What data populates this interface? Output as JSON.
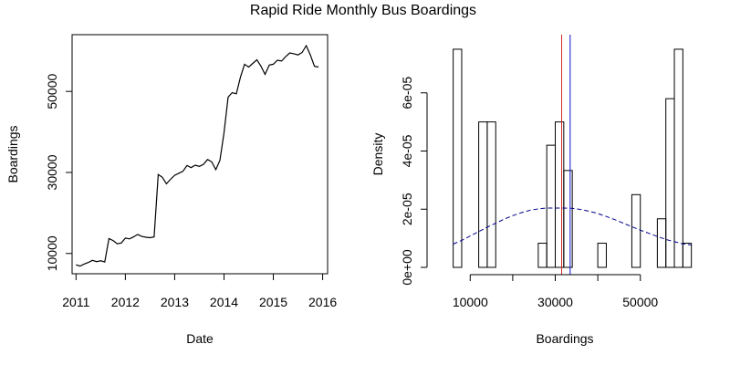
{
  "title": "Rapid Ride Monthly Bus Boardings",
  "chart_data": [
    {
      "type": "line",
      "xlabel": "Date",
      "ylabel": "Boardings",
      "xlim": [
        2010.92,
        2016.1
      ],
      "ylim": [
        5000,
        64000
      ],
      "xticks": [
        2011,
        2012,
        2013,
        2014,
        2015,
        2016
      ],
      "yticks": [
        10000,
        30000,
        50000
      ],
      "grid": false,
      "series": [
        {
          "x": [
            2011.0,
            2011.083,
            2011.167,
            2011.25,
            2011.333,
            2011.417,
            2011.5,
            2011.583,
            2011.667,
            2011.75,
            2011.833,
            2011.917,
            2012.0,
            2012.083,
            2012.167,
            2012.25,
            2012.333,
            2012.417,
            2012.5,
            2012.583,
            2012.667,
            2012.75,
            2012.833,
            2012.917,
            2013.0,
            2013.083,
            2013.167,
            2013.25,
            2013.333,
            2013.417,
            2013.5,
            2013.583,
            2013.667,
            2013.75,
            2013.833,
            2013.917,
            2014.0,
            2014.083,
            2014.167,
            2014.25,
            2014.333,
            2014.417,
            2014.5,
            2014.583,
            2014.667,
            2014.75,
            2014.833,
            2014.917,
            2015.0,
            2015.083,
            2015.167,
            2015.25,
            2015.333,
            2015.417,
            2015.5,
            2015.583,
            2015.667,
            2015.75,
            2015.833,
            2015.917
          ],
          "values": [
            7200,
            6900,
            7400,
            7800,
            8300,
            8000,
            8200,
            7900,
            13700,
            13200,
            12400,
            12600,
            13800,
            13600,
            14100,
            14700,
            14200,
            14000,
            13900,
            14100,
            29500,
            28800,
            27200,
            28300,
            29300,
            29800,
            30300,
            31700,
            31200,
            31800,
            31500,
            32000,
            33200,
            32600,
            30700,
            33000,
            39800,
            48600,
            49700,
            49400,
            53500,
            56700,
            56000,
            56900,
            57800,
            56200,
            54200,
            56500,
            56700,
            57700,
            57500,
            58600,
            59500,
            59300,
            59000,
            59600,
            61300,
            59000,
            56200,
            56000
          ]
        }
      ]
    },
    {
      "type": "histogram",
      "xlabel": "Boardings",
      "ylabel": "Density",
      "xlim": [
        2000,
        62500
      ],
      "ylim": [
        0,
        8e-05
      ],
      "xticks": [
        10000,
        30000,
        50000
      ],
      "yticks": [
        0,
        2e-05,
        4e-05,
        6e-05
      ],
      "ytick_labels": [
        "0e+00",
        "2e-05",
        "4e-05",
        "6e-05"
      ],
      "grid": false,
      "bins": [
        6000,
        8000,
        10000,
        12000,
        14000,
        16000,
        18000,
        20000,
        22000,
        24000,
        26000,
        28000,
        30000,
        32000,
        34000,
        36000,
        38000,
        40000,
        42000,
        44000,
        46000,
        48000,
        50000,
        52000,
        54000,
        56000,
        58000,
        60000,
        62000
      ],
      "density": [
        7.5e-05,
        0,
        0,
        5e-05,
        5e-05,
        0,
        0,
        0,
        0,
        0,
        8.3e-06,
        4.2e-05,
        5e-05,
        3.33e-05,
        0,
        0,
        0,
        8.3e-06,
        0,
        0,
        0,
        2.5e-05,
        0,
        0,
        1.67e-05,
        5.8e-05,
        7.5e-05,
        8.3e-06
      ],
      "density_curve": {
        "style": "dashed",
        "color": "#00008b",
        "x": [
          6000,
          8000,
          10000,
          12000,
          14000,
          16000,
          18000,
          20000,
          22000,
          24000,
          26000,
          28000,
          30000,
          32000,
          34000,
          36000,
          38000,
          40000,
          42000,
          44000,
          46000,
          48000,
          50000,
          52000,
          54000,
          56000,
          58000,
          60000,
          62000
        ],
        "values": [
          8e-06,
          9.3e-06,
          1.08e-05,
          1.23e-05,
          1.38e-05,
          1.52e-05,
          1.66e-05,
          1.78e-05,
          1.88e-05,
          1.96e-05,
          2.01e-05,
          2.04e-05,
          2.04e-05,
          2.04e-05,
          2.03e-05,
          1.99e-05,
          1.93e-05,
          1.85e-05,
          1.75e-05,
          1.64e-05,
          1.52e-05,
          1.4e-05,
          1.28e-05,
          1.17e-05,
          1.06e-05,
          9.6e-06,
          8.8e-06,
          8.1e-06,
          7.7e-06
        ]
      },
      "vlines": [
        {
          "x": 31500,
          "color": "#d62728"
        },
        {
          "x": 33500,
          "color": "#1010cc"
        }
      ]
    }
  ]
}
